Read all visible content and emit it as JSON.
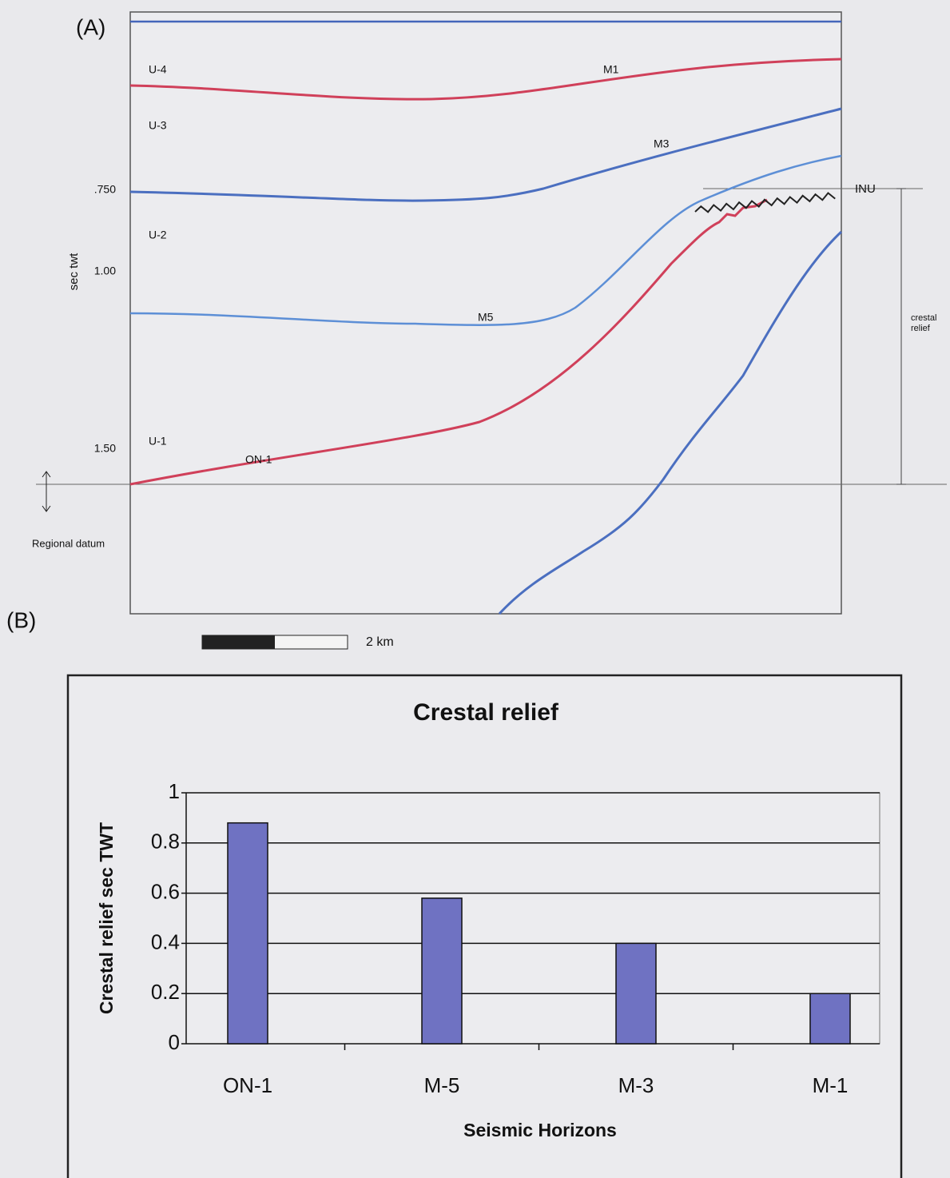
{
  "section": {
    "panel_label": "(A)",
    "axis_label": "sec twt",
    "ticks": [
      ".750",
      "1.00",
      "1.50"
    ],
    "units": [
      "U-4",
      "U-3",
      "U-2",
      "U-1"
    ],
    "horizons": [
      "M1",
      "M3",
      "M5",
      "ON-1",
      "INU"
    ],
    "datum": "Regional datum",
    "relief": [
      "crestal",
      "relief"
    ],
    "scale": "2 km"
  },
  "chart_data": {
    "type": "bar",
    "panel_label": "(B)",
    "title": "Crestal relief",
    "x_label": "Seismic Horizons",
    "y_label": "Crestal relief sec TWT",
    "categories": [
      "ON-1",
      "M-5",
      "M-3",
      "M-1"
    ],
    "values": [
      0.88,
      0.58,
      0.4,
      0.2
    ],
    "color": "#6f72c2",
    "ylim": [
      0,
      1
    ],
    "yticks": [
      0,
      0.2,
      0.4,
      0.6,
      0.8,
      1
    ],
    "grid": true
  }
}
